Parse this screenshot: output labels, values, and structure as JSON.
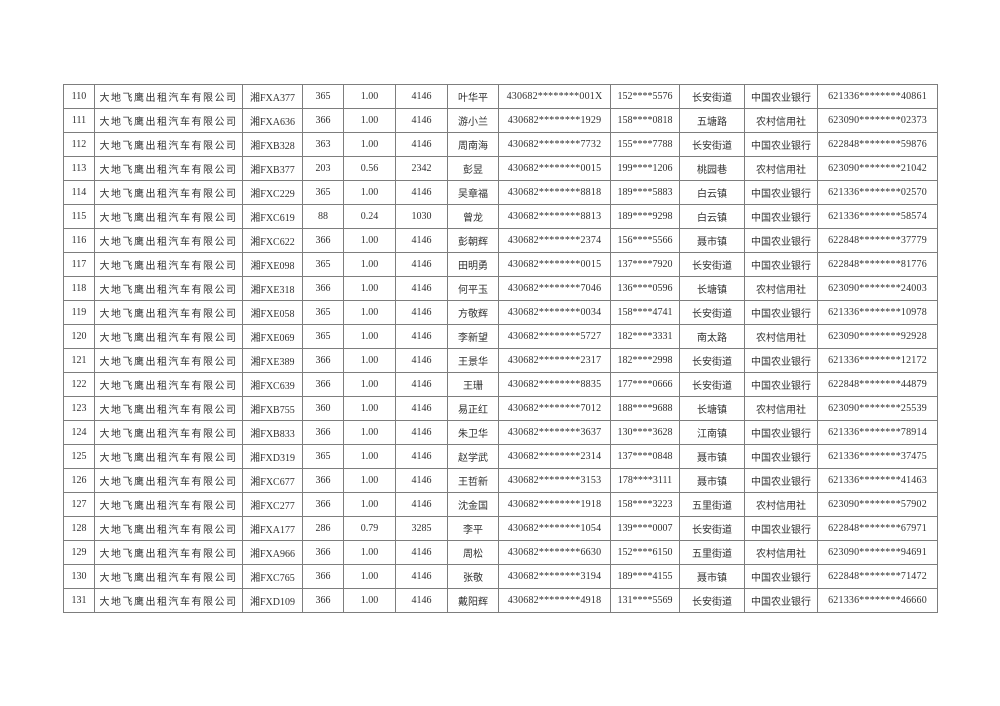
{
  "document": {
    "type": "subsidy-payment-list-page",
    "background_color": "#ffffff",
    "border_color": "#7d7d7d",
    "text_color": "#303030"
  },
  "table": {
    "column_keys": [
      "row-number",
      "company-name",
      "plate-number",
      "days",
      "ratio",
      "amount",
      "driver-name",
      "id-number",
      "phone-number",
      "street-town",
      "bank-name",
      "bank-account"
    ],
    "rows": [
      [
        "110",
        "大地飞鹰出租汽车有限公司",
        "湘FXA377",
        "365",
        "1.00",
        "4146",
        "叶华平",
        "430682********001X",
        "152****5576",
        "长安街道",
        "中国农业银行",
        "621336********40861"
      ],
      [
        "111",
        "大地飞鹰出租汽车有限公司",
        "湘FXA636",
        "366",
        "1.00",
        "4146",
        "游小兰",
        "430682********1929",
        "158****0818",
        "五塘路",
        "农村信用社",
        "623090********02373"
      ],
      [
        "112",
        "大地飞鹰出租汽车有限公司",
        "湘FXB328",
        "363",
        "1.00",
        "4146",
        "周南海",
        "430682********7732",
        "155****7788",
        "长安街道",
        "中国农业银行",
        "622848********59876"
      ],
      [
        "113",
        "大地飞鹰出租汽车有限公司",
        "湘FXB377",
        "203",
        "0.56",
        "2342",
        "彭昱",
        "430682********0015",
        "199****1206",
        "桃园巷",
        "农村信用社",
        "623090********21042"
      ],
      [
        "114",
        "大地飞鹰出租汽车有限公司",
        "湘FXC229",
        "365",
        "1.00",
        "4146",
        "吴章福",
        "430682********8818",
        "189****5883",
        "白云镇",
        "中国农业银行",
        "621336********02570"
      ],
      [
        "115",
        "大地飞鹰出租汽车有限公司",
        "湘FXC619",
        "88",
        "0.24",
        "1030",
        "曾龙",
        "430682********8813",
        "189****9298",
        "白云镇",
        "中国农业银行",
        "621336********58574"
      ],
      [
        "116",
        "大地飞鹰出租汽车有限公司",
        "湘FXC622",
        "366",
        "1.00",
        "4146",
        "彭朝辉",
        "430682********2374",
        "156****5566",
        "聂市镇",
        "中国农业银行",
        "622848********37779"
      ],
      [
        "117",
        "大地飞鹰出租汽车有限公司",
        "湘FXE098",
        "365",
        "1.00",
        "4146",
        "田明勇",
        "430682********0015",
        "137****7920",
        "长安街道",
        "中国农业银行",
        "622848********81776"
      ],
      [
        "118",
        "大地飞鹰出租汽车有限公司",
        "湘FXE318",
        "366",
        "1.00",
        "4146",
        "何平玉",
        "430682********7046",
        "136****0596",
        "长塘镇",
        "农村信用社",
        "623090********24003"
      ],
      [
        "119",
        "大地飞鹰出租汽车有限公司",
        "湘FXE058",
        "365",
        "1.00",
        "4146",
        "方敬辉",
        "430682********0034",
        "158****4741",
        "长安街道",
        "中国农业银行",
        "621336********10978"
      ],
      [
        "120",
        "大地飞鹰出租汽车有限公司",
        "湘FXE069",
        "365",
        "1.00",
        "4146",
        "李新望",
        "430682********5727",
        "182****3331",
        "南太路",
        "农村信用社",
        "623090********92928"
      ],
      [
        "121",
        "大地飞鹰出租汽车有限公司",
        "湘FXE389",
        "366",
        "1.00",
        "4146",
        "王景华",
        "430682********2317",
        "182****2998",
        "长安街道",
        "中国农业银行",
        "621336********12172"
      ],
      [
        "122",
        "大地飞鹰出租汽车有限公司",
        "湘FXC639",
        "366",
        "1.00",
        "4146",
        "王珊",
        "430682********8835",
        "177****0666",
        "长安街道",
        "中国农业银行",
        "622848********44879"
      ],
      [
        "123",
        "大地飞鹰出租汽车有限公司",
        "湘FXB755",
        "360",
        "1.00",
        "4146",
        "易正红",
        "430682********7012",
        "188****9688",
        "长塘镇",
        "农村信用社",
        "623090********25539"
      ],
      [
        "124",
        "大地飞鹰出租汽车有限公司",
        "湘FXB833",
        "366",
        "1.00",
        "4146",
        "朱卫华",
        "430682********3637",
        "130****3628",
        "江南镇",
        "中国农业银行",
        "621336********78914"
      ],
      [
        "125",
        "大地飞鹰出租汽车有限公司",
        "湘FXD319",
        "365",
        "1.00",
        "4146",
        "赵学武",
        "430682********2314",
        "137****0848",
        "聂市镇",
        "中国农业银行",
        "621336********37475"
      ],
      [
        "126",
        "大地飞鹰出租汽车有限公司",
        "湘FXC677",
        "366",
        "1.00",
        "4146",
        "王哲新",
        "430682********3153",
        "178****3111",
        "聂市镇",
        "中国农业银行",
        "621336********41463"
      ],
      [
        "127",
        "大地飞鹰出租汽车有限公司",
        "湘FXC277",
        "366",
        "1.00",
        "4146",
        "沈金国",
        "430682********1918",
        "158****3223",
        "五里街道",
        "农村信用社",
        "623090********57902"
      ],
      [
        "128",
        "大地飞鹰出租汽车有限公司",
        "湘FXA177",
        "286",
        "0.79",
        "3285",
        "李平",
        "430682********1054",
        "139****0007",
        "长安街道",
        "中国农业银行",
        "622848********67971"
      ],
      [
        "129",
        "大地飞鹰出租汽车有限公司",
        "湘FXA966",
        "366",
        "1.00",
        "4146",
        "周松",
        "430682********6630",
        "152****6150",
        "五里街道",
        "农村信用社",
        "623090********94691"
      ],
      [
        "130",
        "大地飞鹰出租汽车有限公司",
        "湘FXC765",
        "366",
        "1.00",
        "4146",
        "张敬",
        "430682********3194",
        "189****4155",
        "聂市镇",
        "中国农业银行",
        "622848********71472"
      ],
      [
        "131",
        "大地飞鹰出租汽车有限公司",
        "湘FXD109",
        "366",
        "1.00",
        "4146",
        "戴阳辉",
        "430682********4918",
        "131****5569",
        "长安街道",
        "中国农业银行",
        "621336********46660"
      ]
    ]
  }
}
